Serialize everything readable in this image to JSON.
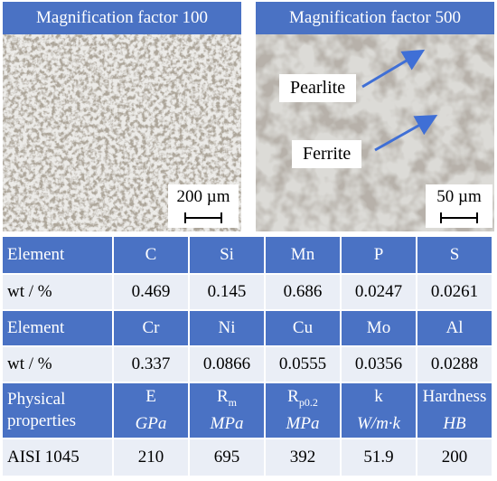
{
  "panels": {
    "left_title": "Magnification factor 100",
    "right_title": "Magnification factor 500",
    "left_scale": "200 µm",
    "right_scale": "50 µm",
    "pearlite_label": "Pearlite",
    "ferrite_label": "Ferrite",
    "arrow_color": "#3f6fd6"
  },
  "table": {
    "row1": {
      "label": "Element",
      "cells": [
        "C",
        "Si",
        "Mn",
        "P",
        "S"
      ]
    },
    "row2": {
      "label": "wt / %",
      "cells": [
        "0.469",
        "0.145",
        "0.686",
        "0.0247",
        "0.0261"
      ]
    },
    "row3": {
      "label": "Element",
      "cells": [
        "Cr",
        "Ni",
        "Cu",
        "Mo",
        "Al"
      ]
    },
    "row4": {
      "label": "wt / %",
      "cells": [
        "0.337",
        "0.0866",
        "0.0555",
        "0.0356",
        "0.0288"
      ]
    },
    "physical": {
      "label_line1": "Physical",
      "label_line2": "properties",
      "props": [
        {
          "sym": "E",
          "sub": "",
          "unit": "GPa"
        },
        {
          "sym": "R",
          "sub": "m",
          "unit": "MPa"
        },
        {
          "sym": "R",
          "sub": "p0.2",
          "unit": "MPa"
        },
        {
          "sym": "k",
          "sub": "",
          "unit": "W/m·k"
        },
        {
          "sym": "Hardness",
          "sub": "",
          "unit": "HB"
        }
      ]
    },
    "material": {
      "label": "AISI 1045",
      "cells": [
        "210",
        "695",
        "392",
        "51.9",
        "200"
      ]
    }
  },
  "colors": {
    "header_blue": "#4a72c4",
    "row_light": "#eaeef6"
  }
}
